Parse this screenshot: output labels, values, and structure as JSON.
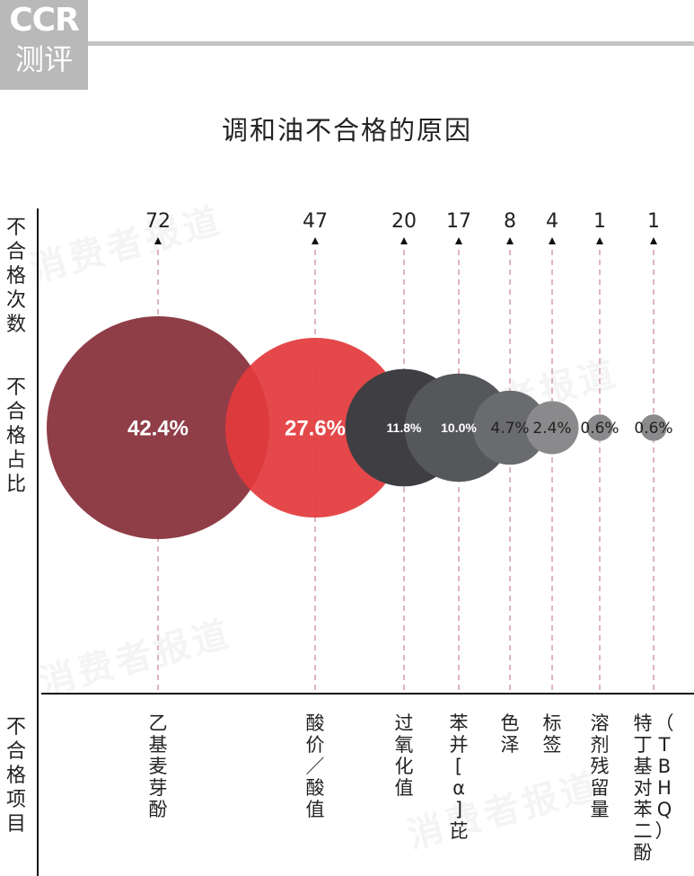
{
  "logo": {
    "line1": "CCR",
    "line2": "测评"
  },
  "watermark": "消费者报道",
  "row_labels": {
    "count": "不合格次数",
    "percent": "不合格占比",
    "item": "不合格项目"
  },
  "chart_data": {
    "type": "bubble",
    "title": "调和油不合格的原因",
    "categories": [
      "乙基麦芽酚",
      "酸价／酸值",
      "过氧化值",
      "苯并[α]芘",
      "色泽",
      "标签",
      "溶剂残留量",
      "（TBHQ）特丁基对苯二酚"
    ],
    "category_lines": [
      [
        "乙基麦芽酚"
      ],
      [
        "酸价／酸值"
      ],
      [
        "过氧化值"
      ],
      [
        "苯并[α]芘"
      ],
      [
        "色泽"
      ],
      [
        "标签"
      ],
      [
        "溶剂残留量"
      ],
      [
        "（TBHQ）",
        "特丁基对苯二酚"
      ]
    ],
    "counts": [
      72,
      47,
      20,
      17,
      8,
      4,
      1,
      1
    ],
    "percent_labels": [
      "42.4%",
      "27.6%",
      "11.8%",
      "10.0%",
      "4.7%",
      "2.4%",
      "0.6%",
      "0.6%"
    ],
    "percent_values": [
      42.4,
      27.6,
      11.8,
      10.0,
      4.7,
      2.4,
      0.6,
      0.6
    ],
    "colors": [
      "#8f3e48",
      "#e23a3c",
      "#3f3f43",
      "#55575b",
      "#6a6b6e",
      "#8a8a8c",
      "#8a8a8c",
      "#8a8a8c"
    ],
    "label_colors": [
      "#ffffff",
      "#ffffff",
      "#ffffff",
      "#ffffff",
      "#222222",
      "#222222",
      "#222222",
      "#222222"
    ],
    "guide_color": "#c9848f"
  }
}
